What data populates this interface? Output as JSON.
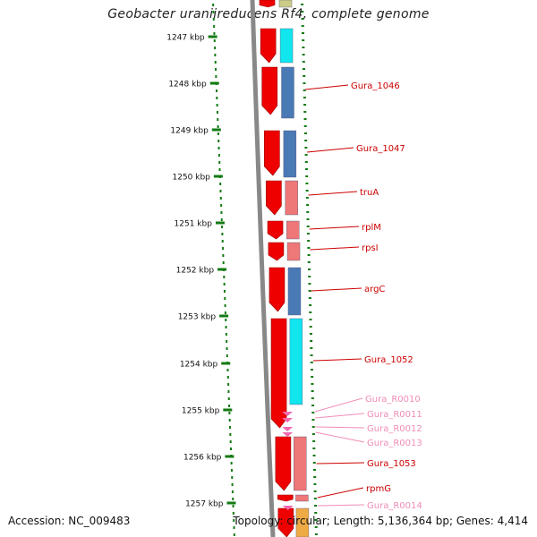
{
  "title": "Geobacter uraniireducens Rf4, complete genome",
  "footer": {
    "accession": "Accession: NC_009483",
    "topology": "Topology: circular; Length: 5,136,364 bp; Genes: 4,414"
  },
  "ticks": [
    {
      "label": "1247 kbp"
    },
    {
      "label": "1248 kbp"
    },
    {
      "label": "1249 kbp"
    },
    {
      "label": "1250 kbp"
    },
    {
      "label": "1251 kbp"
    },
    {
      "label": "1252 kbp"
    },
    {
      "label": "1253 kbp"
    },
    {
      "label": "1254 kbp"
    },
    {
      "label": "1255 kbp"
    },
    {
      "label": "1256 kbp"
    },
    {
      "label": "1257 kbp"
    }
  ],
  "genes": [
    {
      "label": "Gura_1046",
      "color": "#cc0000"
    },
    {
      "label": "Gura_1047",
      "color": "#cc0000"
    },
    {
      "label": "truA",
      "color": "#cc0000"
    },
    {
      "label": "rplM",
      "color": "#cc0000"
    },
    {
      "label": "rpsI",
      "color": "#cc0000"
    },
    {
      "label": "argC",
      "color": "#cc0000"
    },
    {
      "label": "Gura_1052",
      "color": "#cc0000"
    },
    {
      "label": "Gura_R0010",
      "color": "#f08cb8"
    },
    {
      "label": "Gura_R0011",
      "color": "#f08cb8"
    },
    {
      "label": "Gura_R0012",
      "color": "#f08cb8"
    },
    {
      "label": "Gura_R0013",
      "color": "#f08cb8"
    },
    {
      "label": "Gura_1053",
      "color": "#cc0000"
    },
    {
      "label": "rpmG",
      "color": "#cc0000"
    },
    {
      "label": "Gura_R0014",
      "color": "#f08cb8"
    }
  ],
  "colors": {
    "cds": "#ee0000",
    "rna": "#f06ab0",
    "steelblue": "#4a7ab5",
    "cyan": "#11e5ee",
    "salmon": "#ee7777",
    "tick": "#137a13",
    "backbone": "#888888"
  }
}
